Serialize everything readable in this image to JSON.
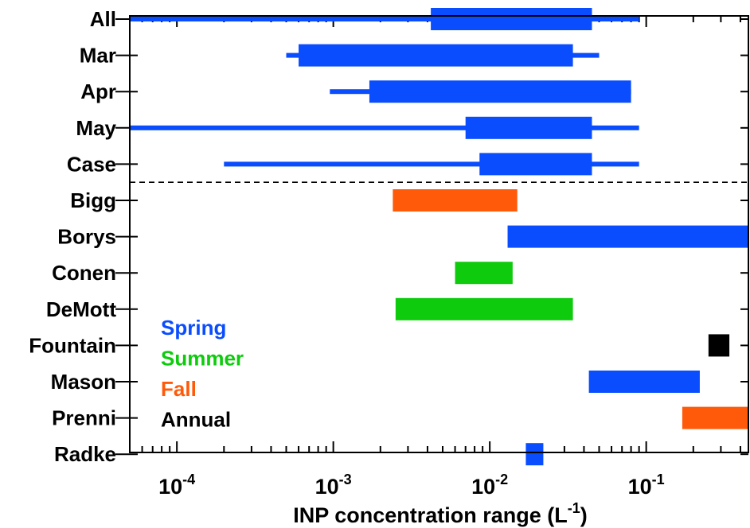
{
  "chart_data": {
    "type": "range",
    "xscale": "log",
    "xlim": [
      5e-05,
      0.45
    ],
    "xlabel": "INP concentration range (L⁻¹)",
    "xticks": [
      {
        "value": 0.0001,
        "base": "10",
        "exp": "-4"
      },
      {
        "value": 0.001,
        "base": "10",
        "exp": "-3"
      },
      {
        "value": 0.01,
        "base": "10",
        "exp": "-2"
      },
      {
        "value": 0.1,
        "base": "10",
        "exp": "-1"
      }
    ],
    "xlabel_parts": {
      "text": "INP concentration range (L",
      "sup": "-1",
      "close": ")"
    },
    "legend": [
      {
        "label": "Spring",
        "color": "#0a4dff"
      },
      {
        "label": "Summer",
        "color": "#0ecb0e"
      },
      {
        "label": "Fall",
        "color": "#ff5a0a"
      },
      {
        "label": "Annual",
        "color": "#000000"
      }
    ],
    "legend_position": "lower-left",
    "separator_after": "Case",
    "rows": [
      {
        "label": "All",
        "season": "Spring",
        "full": [
          5e-05,
          0.09
        ],
        "iqr": [
          0.0042,
          0.045
        ]
      },
      {
        "label": "Mar",
        "season": "Spring",
        "full": [
          0.0005,
          0.05
        ],
        "iqr": [
          0.0006,
          0.034
        ]
      },
      {
        "label": "Apr",
        "season": "Spring",
        "full": [
          0.00095,
          0.08
        ],
        "iqr": [
          0.0017,
          0.08
        ]
      },
      {
        "label": "May",
        "season": "Spring",
        "full": [
          5e-05,
          0.09
        ],
        "iqr": [
          0.007,
          0.045
        ]
      },
      {
        "label": "Case",
        "season": "Spring",
        "full": [
          0.0002,
          0.09
        ],
        "iqr": [
          0.0086,
          0.045
        ]
      },
      {
        "label": "Bigg",
        "season": "Fall",
        "iqr": [
          0.0024,
          0.015
        ]
      },
      {
        "label": "Borys",
        "season": "Spring",
        "iqr": [
          0.013,
          0.45
        ]
      },
      {
        "label": "Conen",
        "season": "Summer",
        "iqr": [
          0.006,
          0.014
        ]
      },
      {
        "label": "DeMott",
        "season": "Summer",
        "iqr": [
          0.0025,
          0.034
        ]
      },
      {
        "label": "Fountain",
        "season": "Annual",
        "iqr": [
          0.25,
          0.34
        ]
      },
      {
        "label": "Mason",
        "season": "Spring",
        "iqr": [
          0.043,
          0.22
        ]
      },
      {
        "label": "Prenni",
        "season": "Fall",
        "iqr": [
          0.17,
          0.45
        ]
      },
      {
        "label": "Radke",
        "season": "Spring",
        "iqr": [
          0.017,
          0.022
        ]
      }
    ]
  }
}
